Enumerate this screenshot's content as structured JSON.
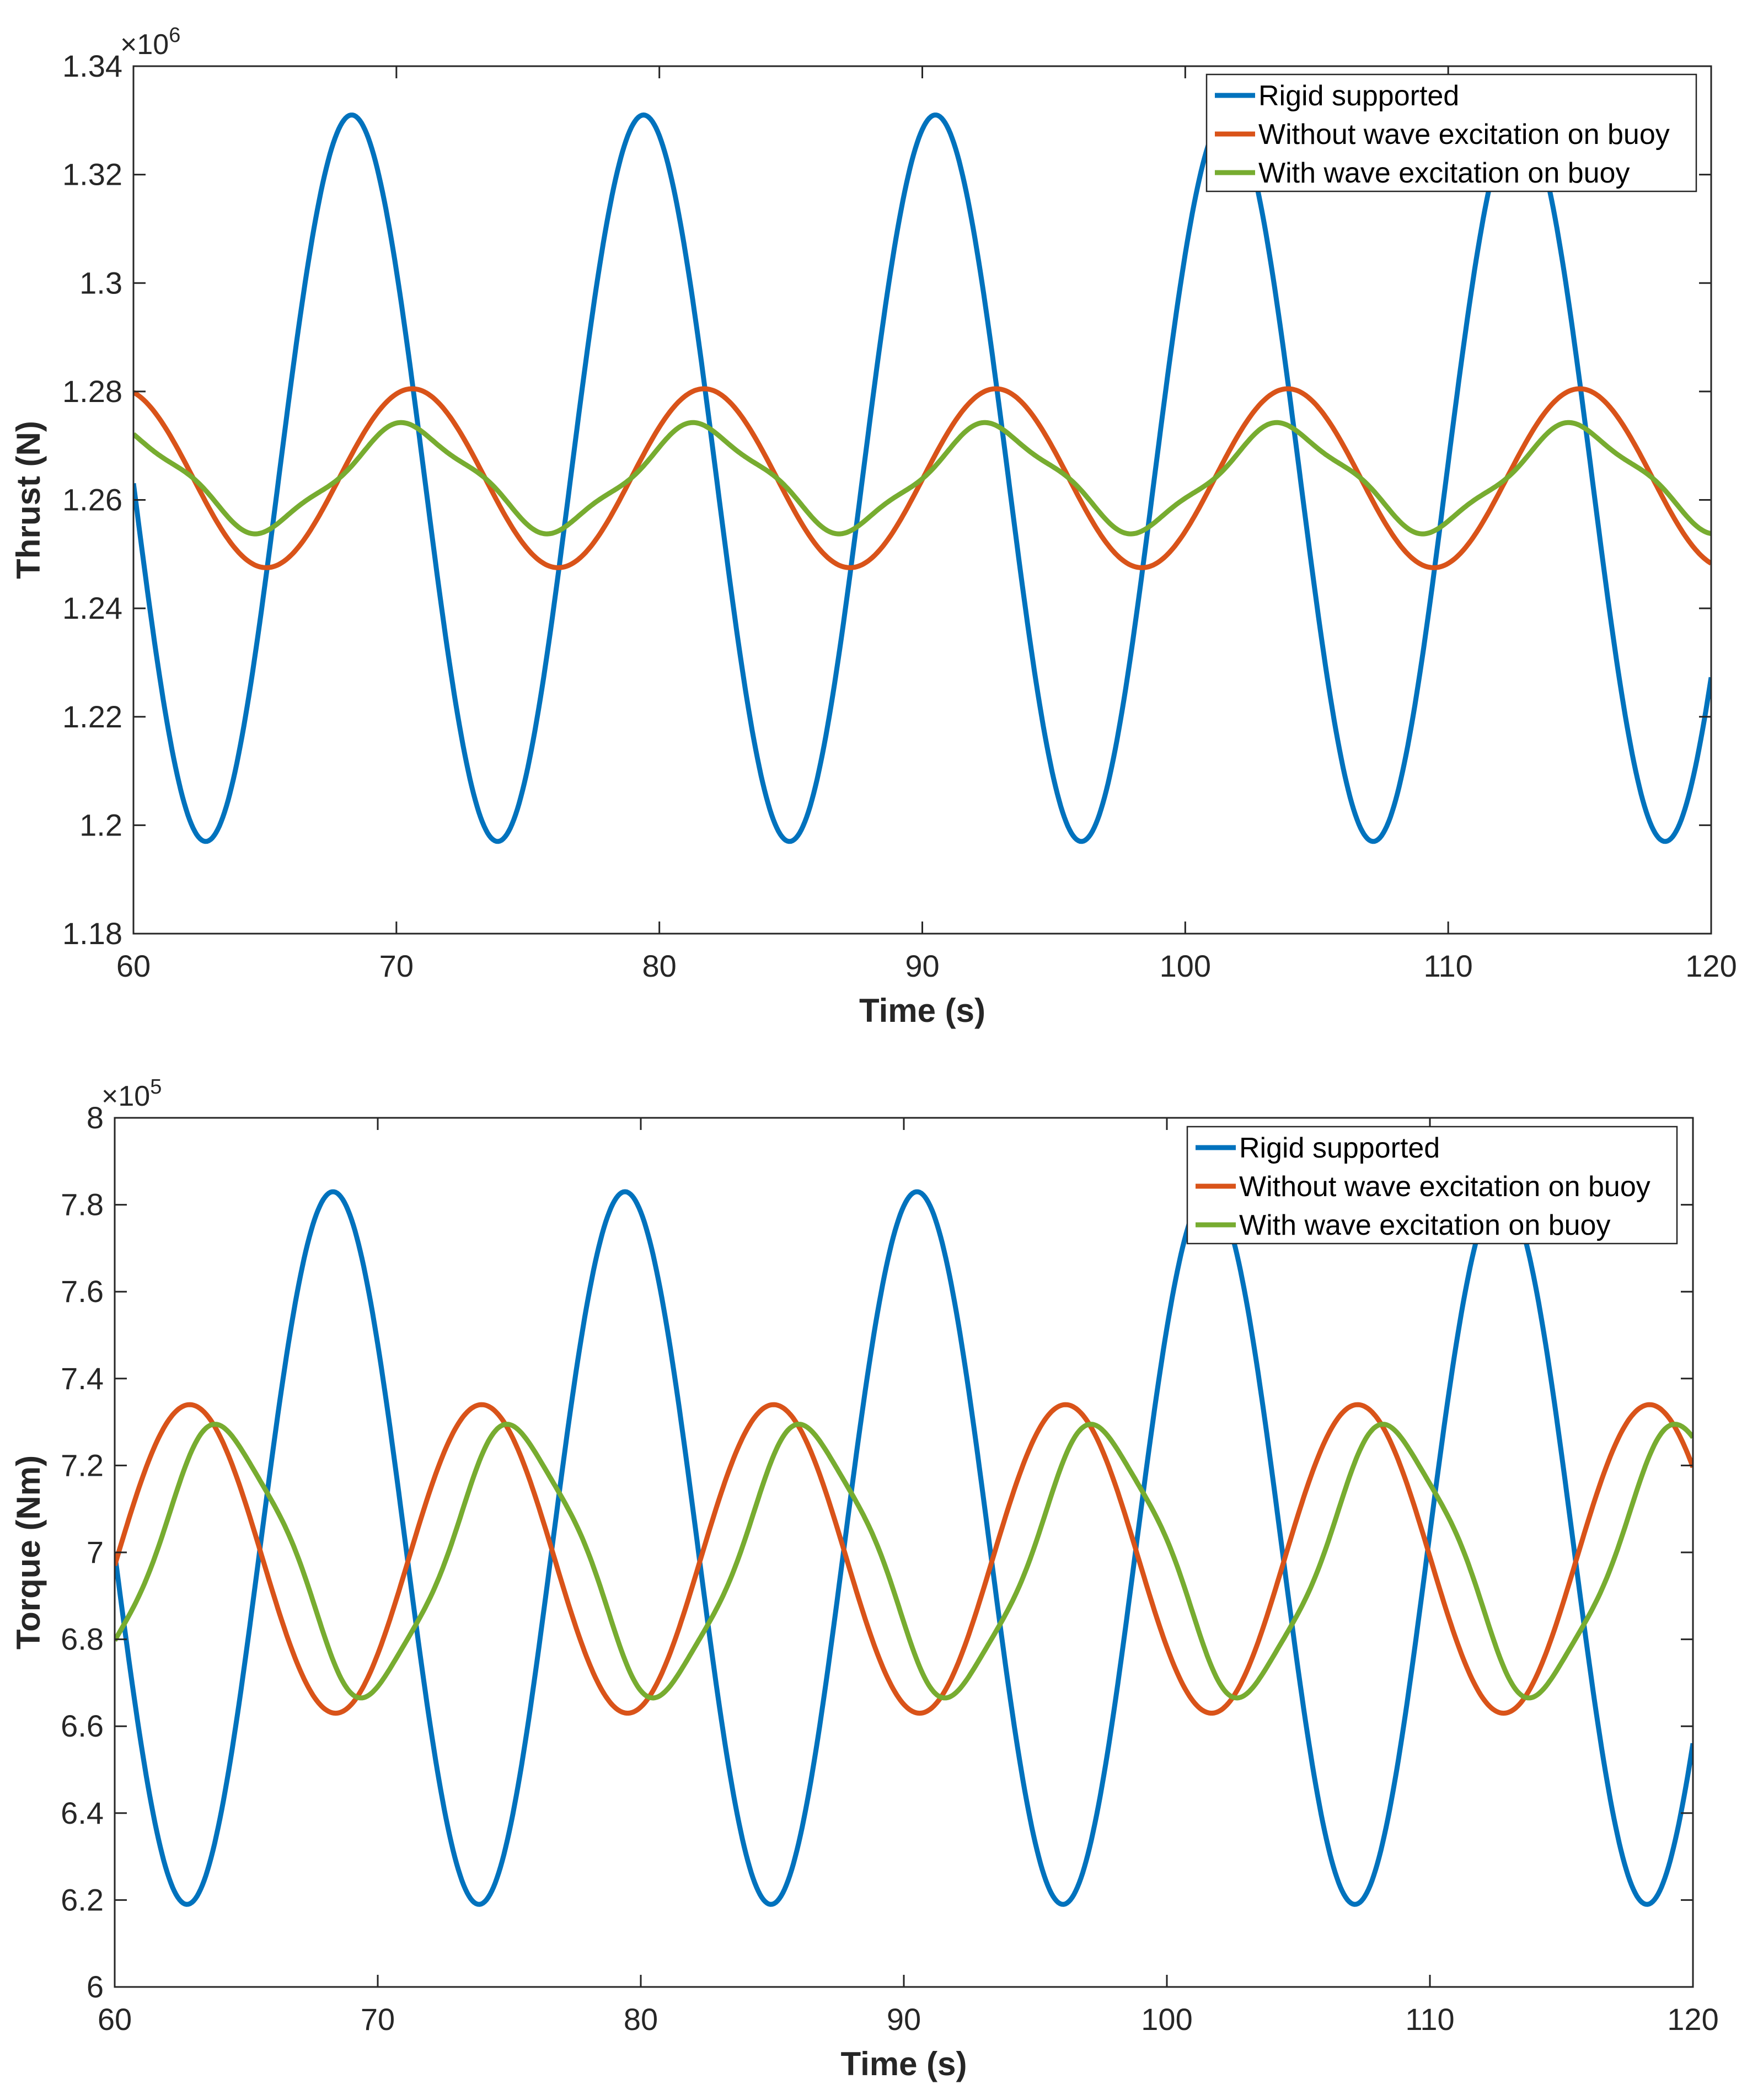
{
  "chart_data": [
    {
      "type": "line",
      "title": "",
      "xlabel": "Time (s)",
      "ylabel": "Thrust (N)",
      "xlim": [
        60,
        120
      ],
      "ylim": [
        1.18,
        1.34
      ],
      "y_scale_label": "×10",
      "y_scale_exponent": "6",
      "x_ticks": [
        60,
        70,
        80,
        90,
        100,
        110,
        120
      ],
      "x_tick_labels": [
        "60",
        "70",
        "80",
        "90",
        "100",
        "110",
        "120"
      ],
      "y_ticks": [
        1.18,
        1.2,
        1.22,
        1.24,
        1.26,
        1.28,
        1.3,
        1.32,
        1.34
      ],
      "y_tick_labels": [
        "1.18",
        "1.2",
        "1.22",
        "1.24",
        "1.26",
        "1.28",
        "1.3",
        "1.32",
        "1.34"
      ],
      "grid": false,
      "legend_position": "top-right",
      "period": 11.1,
      "series": [
        {
          "name": "Rigid supported",
          "color": "#0072BD",
          "mean": 1.264,
          "amplitude": 0.067,
          "peak_time": 68.3,
          "harmonic": 0,
          "harmonic_phase": 0
        },
        {
          "name": "Without wave excitation on buoy",
          "color": "#D95319",
          "mean": 1.264,
          "amplitude": 0.0165,
          "peak_time": 70.6,
          "harmonic": 0,
          "harmonic_phase": 0
        },
        {
          "name": "With wave excitation on buoy",
          "color": "#77AC30",
          "mean": 1.264,
          "amplitude": 0.0092,
          "peak_time": 70.4,
          "harmonic": 0.0012,
          "harmonic_phase": 0.7
        }
      ]
    },
    {
      "type": "line",
      "title": "",
      "xlabel": "Time (s)",
      "ylabel": "Torque (Nm)",
      "xlim": [
        60,
        120
      ],
      "ylim": [
        6.0,
        8.0
      ],
      "y_scale_label": "×10",
      "y_scale_exponent": "5",
      "x_ticks": [
        60,
        70,
        80,
        90,
        100,
        110,
        120
      ],
      "x_tick_labels": [
        "60",
        "70",
        "80",
        "90",
        "100",
        "110",
        "120"
      ],
      "y_ticks": [
        6.0,
        6.2,
        6.4,
        6.6,
        6.8,
        7.0,
        7.2,
        7.4,
        7.6,
        7.8,
        8.0
      ],
      "y_tick_labels": [
        "6",
        "6.2",
        "6.4",
        "6.6",
        "6.8",
        "7",
        "7.2",
        "7.4",
        "7.6",
        "7.8",
        "8"
      ],
      "grid": false,
      "legend_position": "top-right",
      "period": 11.1,
      "series": [
        {
          "name": "Rigid supported",
          "color": "#0072BD",
          "mean": 7.01,
          "amplitude": 0.82,
          "peak_time": 68.3,
          "harmonic": 0,
          "harmonic_phase": 0
        },
        {
          "name": "Without wave excitation on buoy",
          "color": "#D95319",
          "mean": 6.985,
          "amplitude": 0.355,
          "peak_time": 62.85,
          "harmonic": 0,
          "harmonic_phase": 0
        },
        {
          "name": "With wave excitation on buoy",
          "color": "#77AC30",
          "mean": 6.98,
          "amplitude": 0.3,
          "peak_time": 64.1,
          "harmonic": 0.025,
          "harmonic_phase": 1.2
        }
      ]
    }
  ]
}
